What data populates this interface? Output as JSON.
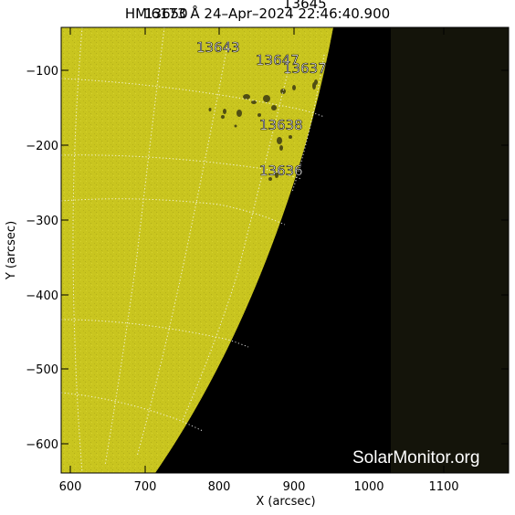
{
  "header": {
    "title": "HMI6173 Å 24–Apr–2024 22:46:40.900",
    "title_overlap_1": "13650",
    "title_overlap_2": "13645"
  },
  "axes": {
    "x_label": "X (arcsec)",
    "y_label": "Y (arcsec)",
    "x_ticks": [
      "600",
      "700",
      "800",
      "900",
      "1000",
      "1100"
    ],
    "y_ticks": [
      "−100",
      "−200",
      "−300",
      "−400",
      "−500",
      "−600"
    ]
  },
  "active_regions": [
    {
      "id": "13643"
    },
    {
      "id": "13647"
    },
    {
      "id": "13637"
    },
    {
      "id": "13638"
    },
    {
      "id": "13636"
    }
  ],
  "watermark": "SolarMonitor.org",
  "colors": {
    "disk": "#c8c320",
    "space": "#000000",
    "offdata": "#14140a",
    "grid": "#ffffff"
  }
}
